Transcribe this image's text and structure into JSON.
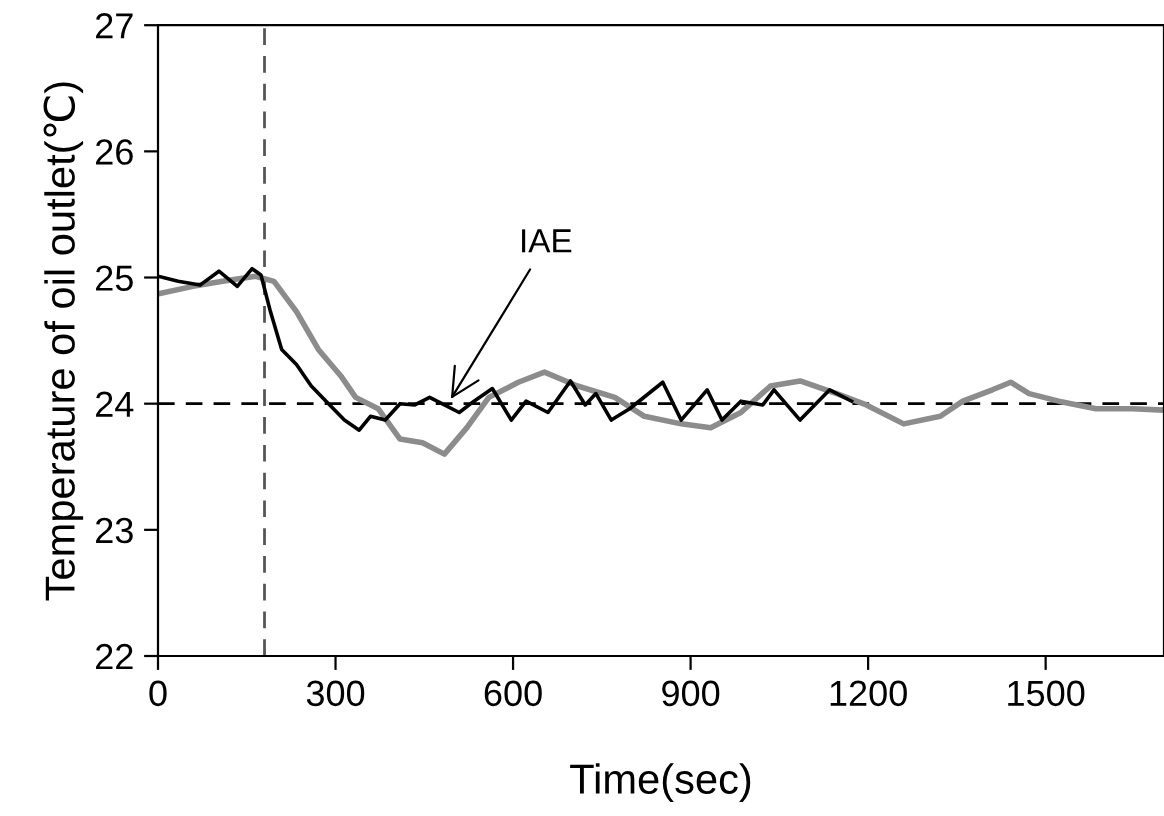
{
  "chart_data": {
    "type": "line",
    "xlabel": "Time(sec)",
    "ylabel": "Temperature of oil outlet(℃)",
    "xlim": [
      0,
      1700
    ],
    "xticks": [
      0,
      300,
      600,
      900,
      1200,
      1500
    ],
    "ylim": [
      22,
      27
    ],
    "yticks": [
      22,
      23,
      24,
      25,
      26,
      27
    ],
    "grid": false,
    "ref_lines": [
      {
        "axis": "x",
        "value": 180,
        "color": "#555555",
        "line_style": "dashed"
      },
      {
        "axis": "y",
        "value": 24,
        "color": "#000000",
        "line_style": "dashed"
      }
    ],
    "annotations": [
      {
        "text": "IAE",
        "x": 490,
        "y": 24.0
      }
    ],
    "series": [
      {
        "color": "#8c8c8c",
        "x": [
          0,
          59,
          109,
          165,
          196,
          234,
          271,
          309,
          334,
          372,
          409,
          447,
          484,
          522,
          559,
          609,
          653,
          709,
          772,
          822,
          884,
          934,
          985,
          1035,
          1085,
          1147,
          1197,
          1260,
          1322,
          1360,
          1410,
          1441,
          1472,
          1522,
          1585,
          1647,
          1695
        ],
        "values": [
          24.87,
          24.93,
          24.97,
          25.01,
          24.97,
          24.73,
          24.43,
          24.22,
          24.05,
          23.96,
          23.72,
          23.69,
          23.6,
          23.81,
          24.05,
          24.17,
          24.25,
          24.14,
          24.05,
          23.9,
          23.84,
          23.81,
          23.93,
          24.14,
          24.18,
          24.08,
          23.99,
          23.84,
          23.9,
          24.02,
          24.11,
          24.17,
          24.08,
          24.02,
          23.96,
          23.96,
          23.95
        ]
      },
      {
        "color": "#000000",
        "x": [
          0,
          34,
          71,
          103,
          134,
          159,
          174,
          190,
          209,
          234,
          259,
          284,
          315,
          340,
          359,
          384,
          409,
          434,
          459,
          484,
          509,
          534,
          565,
          597,
          622,
          659,
          697,
          722,
          740,
          766,
          797,
          853,
          884,
          928,
          953,
          985,
          1022,
          1041,
          1085,
          1135,
          1172
        ],
        "values": [
          25.01,
          24.97,
          24.94,
          25.05,
          24.93,
          25.07,
          25.02,
          24.73,
          24.43,
          24.31,
          24.14,
          24.02,
          23.87,
          23.79,
          23.9,
          23.87,
          24.0,
          23.99,
          24.05,
          23.99,
          23.93,
          24.02,
          24.12,
          23.87,
          24.02,
          23.93,
          24.18,
          23.99,
          24.08,
          23.87,
          23.96,
          24.17,
          23.87,
          24.11,
          23.87,
          24.02,
          23.99,
          24.11,
          23.87,
          24.11,
          24.02
        ]
      }
    ]
  }
}
